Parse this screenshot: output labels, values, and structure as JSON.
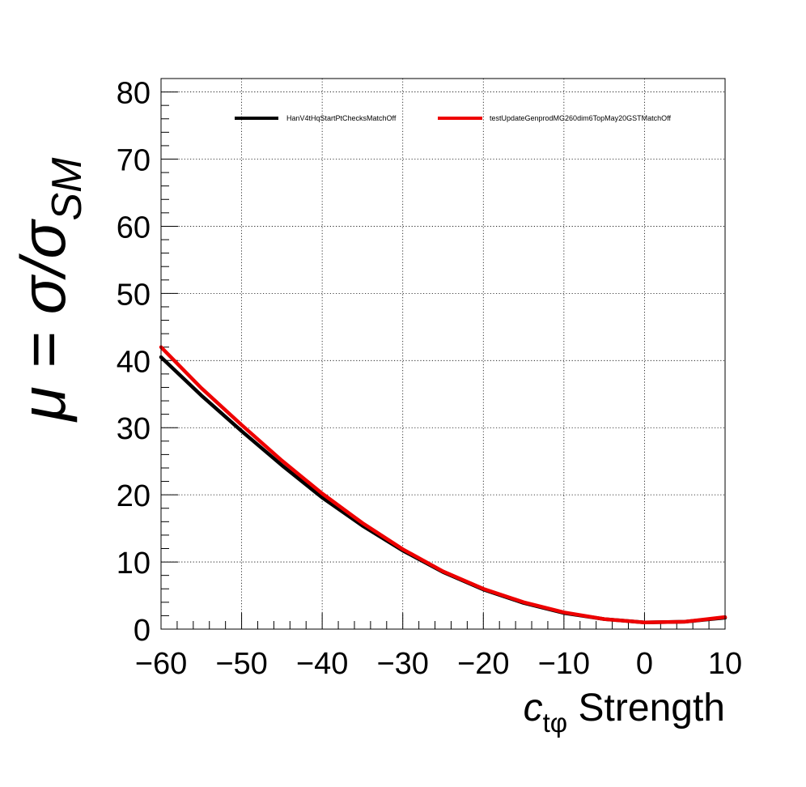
{
  "chart_data": {
    "type": "line",
    "title": "",
    "xlabel": {
      "main": "c",
      "subscript": "tφ",
      "suffix": " Strength"
    },
    "ylabel": {
      "main": "μ = σ/σ",
      "subscript": "SM"
    },
    "xlim": [
      -60,
      10
    ],
    "ylim": [
      0,
      82
    ],
    "x_ticks": [
      -60,
      -50,
      -40,
      -30,
      -20,
      -10,
      0,
      10
    ],
    "x_tick_labels": [
      "−60",
      "−50",
      "−40",
      "−30",
      "−20",
      "−10",
      "0",
      "10"
    ],
    "y_ticks": [
      0,
      10,
      20,
      30,
      40,
      50,
      60,
      70,
      80
    ],
    "y_tick_labels": [
      "0",
      "10",
      "20",
      "30",
      "40",
      "50",
      "60",
      "70",
      "80"
    ],
    "grid": true,
    "legend_position": "top",
    "series": [
      {
        "name": "HanV4tHqStartPtChecksMatchOff",
        "color": "#000000",
        "x": [
          -60,
          -55,
          -50,
          -45,
          -40,
          -35,
          -30,
          -25,
          -20,
          -15,
          -10,
          -5,
          0,
          5,
          10
        ],
        "values": [
          40.5,
          34.8,
          29.5,
          24.4,
          19.6,
          15.4,
          11.7,
          8.5,
          5.9,
          3.9,
          2.4,
          1.5,
          1.0,
          1.1,
          1.7
        ]
      },
      {
        "name": "testUpdateGenprodMG260dim6TopMay20GSTMatchOff",
        "color": "#ee0000",
        "x": [
          -60,
          -55,
          -50,
          -45,
          -40,
          -35,
          -30,
          -25,
          -20,
          -15,
          -10,
          -5,
          0,
          5,
          10
        ],
        "values": [
          42.0,
          35.9,
          30.4,
          25.1,
          20.2,
          15.8,
          11.9,
          8.6,
          6.0,
          4.0,
          2.5,
          1.5,
          1.0,
          1.1,
          1.8
        ]
      }
    ]
  }
}
